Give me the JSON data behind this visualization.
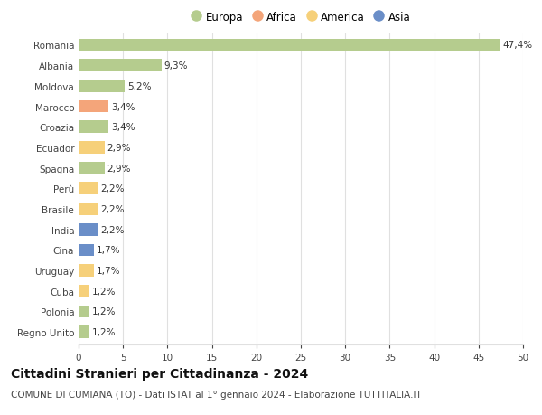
{
  "countries": [
    "Romania",
    "Albania",
    "Moldova",
    "Marocco",
    "Croazia",
    "Ecuador",
    "Spagna",
    "Perù",
    "Brasile",
    "India",
    "Cina",
    "Uruguay",
    "Cuba",
    "Polonia",
    "Regno Unito"
  ],
  "values": [
    47.4,
    9.3,
    5.2,
    3.4,
    3.4,
    2.9,
    2.9,
    2.2,
    2.2,
    2.2,
    1.7,
    1.7,
    1.2,
    1.2,
    1.2
  ],
  "labels": [
    "47,4%",
    "9,3%",
    "5,2%",
    "3,4%",
    "3,4%",
    "2,9%",
    "2,9%",
    "2,2%",
    "2,2%",
    "2,2%",
    "1,7%",
    "1,7%",
    "1,2%",
    "1,2%",
    "1,2%"
  ],
  "continents": [
    "Europa",
    "Europa",
    "Europa",
    "Africa",
    "Europa",
    "America",
    "Europa",
    "America",
    "America",
    "Asia",
    "Asia",
    "America",
    "America",
    "Europa",
    "Europa"
  ],
  "continent_colors": {
    "Europa": "#b5cc8e",
    "Africa": "#f4a57a",
    "America": "#f6d07a",
    "Asia": "#6a8ec8"
  },
  "legend_order": [
    "Europa",
    "Africa",
    "America",
    "Asia"
  ],
  "title": "Cittadini Stranieri per Cittadinanza - 2024",
  "subtitle": "COMUNE DI CUMIANA (TO) - Dati ISTAT al 1° gennaio 2024 - Elaborazione TUTTITALIA.IT",
  "xlim": [
    0,
    50
  ],
  "xticks": [
    0,
    5,
    10,
    15,
    20,
    25,
    30,
    35,
    40,
    45,
    50
  ],
  "background_color": "#ffffff",
  "grid_color": "#e0e0e0",
  "bar_height": 0.6,
  "title_fontsize": 10,
  "subtitle_fontsize": 7.5,
  "label_fontsize": 7.5,
  "tick_fontsize": 7.5,
  "legend_fontsize": 8.5
}
